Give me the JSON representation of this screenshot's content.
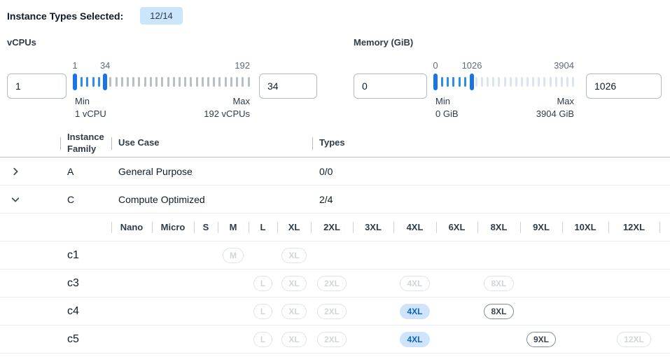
{
  "header": {
    "label": "Instance Types Selected:",
    "badge": "12/14"
  },
  "filters": [
    {
      "label": "vCPUs",
      "min": 1,
      "max": 192,
      "low": 1,
      "high": 34,
      "low_text": "1",
      "high_text": "34",
      "scale": {
        "low": "1",
        "high": "34",
        "max": "192"
      },
      "min_title": "Min",
      "min_sub": "1 vCPU",
      "max_title": "Max",
      "max_sub": "192 vCPUs",
      "tick_off_color": "#b9bfc7"
    },
    {
      "label": "Memory (GiB)",
      "min": 0,
      "max": 3904,
      "low": 0,
      "high": 1026,
      "low_text": "0",
      "high_text": "1026",
      "scale": {
        "low": "0",
        "high": "1026",
        "max": "3904"
      },
      "min_title": "Min",
      "min_sub": "0 GiB",
      "max_title": "Max",
      "max_sub": "3904 GiB",
      "tick_off_color": "#dbe4f2"
    }
  ],
  "table": {
    "headers": {
      "instance_family": "Instance Family",
      "use_case": "Use Case",
      "types": "Types"
    },
    "header_checkbox": "indeterminate",
    "size_columns": [
      "Nano",
      "Micro",
      "S",
      "M",
      "L",
      "XL",
      "2XL",
      "3XL",
      "4XL",
      "6XL",
      "8XL",
      "9XL",
      "10XL",
      "12XL"
    ],
    "family_rows": [
      {
        "family": "A",
        "use_case": "General Purpose",
        "types": "0/0",
        "expanded": false,
        "checkbox": "disabled",
        "children": []
      },
      {
        "family": "C",
        "use_case": "Compute Optimized",
        "types": "2/4",
        "expanded": true,
        "checkbox": "indeterminate",
        "children": [
          {
            "name": "c1",
            "checkbox": "disabled",
            "sizes": {
              "M": "disabled",
              "XL": "disabled"
            }
          },
          {
            "name": "c3",
            "checkbox": "disabled",
            "sizes": {
              "L": "disabled",
              "XL": "disabled",
              "2XL": "disabled",
              "4XL": "disabled",
              "8XL": "disabled"
            }
          },
          {
            "name": "c4",
            "checkbox": "indeterminate",
            "sizes": {
              "L": "disabled",
              "XL": "disabled",
              "2XL": "disabled",
              "4XL": "selected",
              "8XL": "enabled"
            }
          },
          {
            "name": "c5",
            "checkbox": "indeterminate",
            "sizes": {
              "L": "disabled",
              "XL": "disabled",
              "2XL": "disabled",
              "4XL": "selected",
              "9XL": "enabled",
              "12XL": "disabled"
            }
          }
        ]
      }
    ]
  },
  "colors": {
    "accent": "#1a74e8",
    "tick_on": "#2f8ceb",
    "pill_selected_bg": "#cfe4fa",
    "pill_selected_text": "#0c64c8",
    "badge_bg": "#cbe5fa"
  }
}
